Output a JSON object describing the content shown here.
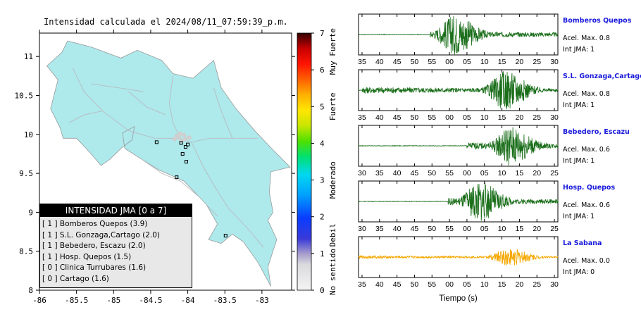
{
  "map": {
    "title": "Intensidad calculada el 2024/08/11_07:59:39_p.m.",
    "x_ticks": [
      "-86",
      "-85.5",
      "-85",
      "-84.5",
      "-84",
      "-83.5",
      "-83"
    ],
    "y_ticks": [
      "11",
      "10.5",
      "10",
      "9.5",
      "9",
      "8.5",
      "8"
    ],
    "xlim": [
      -86,
      -82.6
    ],
    "ylim": [
      8,
      11.3
    ],
    "land_color": "#aee9ec",
    "colorbar": {
      "ticks": [
        "0",
        "1",
        "2",
        "3",
        "4",
        "5",
        "6",
        "7"
      ],
      "labels": [
        "No sentido",
        "Debil",
        "Moderado",
        "Fuerte",
        "Muy Fuerte"
      ]
    },
    "stations": [
      {
        "lon": -84.42,
        "lat": 9.9
      },
      {
        "lon": -84.15,
        "lat": 9.45
      },
      {
        "lon": -84.09,
        "lat": 9.89
      },
      {
        "lon": -84.03,
        "lat": 9.84
      },
      {
        "lon": -84.07,
        "lat": 9.75
      },
      {
        "lon": -84.02,
        "lat": 9.65
      },
      {
        "lon": -84.0,
        "lat": 9.87
      },
      {
        "lon": -83.49,
        "lat": 8.7
      }
    ]
  },
  "legend": {
    "title": "INTENSIDAD JMA [0 a 7]",
    "items": [
      {
        "code": "[ 1 ]",
        "text": "Bomberos Quepos (3.9)"
      },
      {
        "code": "[ 1 ]",
        "text": "S.L. Gonzaga,Cartago (2.0)"
      },
      {
        "code": "[ 1 ]",
        "text": "Bebedero, Escazu (2.0)"
      },
      {
        "code": "[ 1 ]",
        "text": "Hosp. Quepos (1.5)"
      },
      {
        "code": "[ 0 ]",
        "text": "Clinica Turrubares (1.6)"
      },
      {
        "code": "[ 0 ]",
        "text": "Cartago (1.6)"
      }
    ]
  },
  "traces": [
    {
      "name": "Bomberos Quepos",
      "accel": "Acel. Max. 0.8",
      "jma": "Int JMA: 1",
      "color": "#1a6e1a",
      "ticks": [
        "35",
        "40",
        "45",
        "50",
        "55",
        "00",
        "05",
        "10",
        "15",
        "20",
        "25",
        "30"
      ],
      "tick0": 35,
      "onset": 55.5,
      "peak": 62.5,
      "level": 1.0
    },
    {
      "name": "S.L. Gonzaga,Cartago",
      "accel": "Acel. Max. 0.8",
      "jma": "Int JMA: 1",
      "color": "#1a6e1a",
      "ticks": [
        "35",
        "40",
        "45",
        "50",
        "55",
        "00",
        "05",
        "10",
        "15",
        "20",
        "25",
        "30"
      ],
      "tick0": 35,
      "onset": 36,
      "peak": 77,
      "level": 1.0
    },
    {
      "name": "Bebedero, Escazu",
      "accel": "Acel. Max. 0.6",
      "jma": "Int JMA: 1",
      "color": "#1a6e1a",
      "ticks": [
        "30",
        "35",
        "40",
        "45",
        "50",
        "55",
        "00",
        "05",
        "10",
        "15",
        "20",
        "25"
      ],
      "tick0": 30,
      "onset": 61,
      "peak": 73.5,
      "level": 1.0
    },
    {
      "name": "Hosp. Quepos",
      "accel": "Acel. Max. 0.6",
      "jma": "Int JMA: 1",
      "color": "#1a6e1a",
      "ticks": [
        "30",
        "35",
        "40",
        "45",
        "50",
        "55",
        "00",
        "05",
        "10",
        "15",
        "20",
        "25"
      ],
      "tick0": 30,
      "onset": 55.5,
      "peak": 64.5,
      "level": 1.0
    },
    {
      "name": "La Sabana",
      "accel": "Acel. Max. 0.0",
      "jma": "Int JMA: 0",
      "color": "#f5a800",
      "ticks": [
        "35",
        "40",
        "45",
        "50",
        "55",
        "00",
        "05",
        "10",
        "15",
        "20",
        "25",
        "30"
      ],
      "tick0": 35,
      "onset": 33,
      "peak": 78,
      "level": 0.45
    }
  ],
  "traces_xlabel": "Tiempo (s)"
}
